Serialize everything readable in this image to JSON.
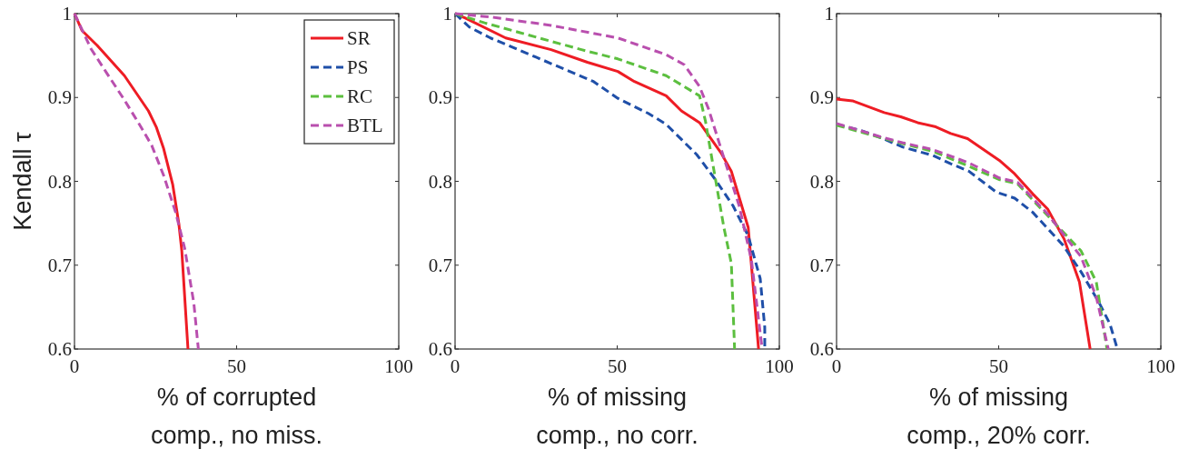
{
  "chart_data": [
    {
      "type": "line",
      "ylabel": "Kendall τ",
      "xlabel": "% of corrupted\ncomp., no miss.",
      "xlim": [
        0,
        100
      ],
      "ylim": [
        0.6,
        1
      ],
      "xticks": [
        0,
        50,
        100
      ],
      "yticks": [
        0.6,
        0.7,
        0.8,
        0.9,
        1
      ],
      "grid": false,
      "legend": "top right",
      "series": [
        {
          "name": "SR",
          "color": "#ee1c24",
          "line_style": "solid",
          "x": [
            0,
            2.3,
            7,
            15.4,
            22.8,
            25.2,
            27.5,
            30.3,
            32.2,
            33.1,
            35
          ],
          "values": [
            1,
            0.98,
            0.962,
            0.926,
            0.884,
            0.865,
            0.839,
            0.796,
            0.749,
            0.717,
            0.6
          ]
        },
        {
          "name": "PS",
          "color": "#1f4fa8",
          "line_style": "dashed"
        },
        {
          "name": "RC",
          "color": "#5cbf3f",
          "line_style": "dashed"
        },
        {
          "name": "BTL",
          "color": "#b94fae",
          "line_style": "dashed",
          "x": [
            0,
            5.1,
            9.8,
            15.4,
            20,
            23.8,
            27.5,
            31.2,
            34,
            36.8,
            38.2
          ],
          "values": [
            1,
            0.958,
            0.93,
            0.897,
            0.868,
            0.843,
            0.807,
            0.763,
            0.72,
            0.655,
            0.6
          ]
        }
      ]
    },
    {
      "type": "line",
      "xlabel": "% of missing\ncomp., no corr.",
      "xlim": [
        0,
        100
      ],
      "ylim": [
        0.6,
        1
      ],
      "xticks": [
        0,
        50,
        100
      ],
      "yticks": [
        0.6,
        0.7,
        0.8,
        0.9,
        1
      ],
      "grid": false,
      "legend": false,
      "series": [
        {
          "color": "#ee1c24",
          "line_style": "solid",
          "x": [
            0,
            3,
            15.6,
            29.6,
            40.8,
            50.2,
            55.3,
            65.1,
            69.8,
            75.4,
            82,
            85.2,
            90.4,
            93.6
          ],
          "values": [
            1,
            0.995,
            0.971,
            0.957,
            0.942,
            0.931,
            0.919,
            0.902,
            0.884,
            0.87,
            0.834,
            0.812,
            0.745,
            0.6
          ]
        },
        {
          "color": "#1f4fa8",
          "line_style": "dashed",
          "x": [
            0,
            4.4,
            10.9,
            25,
            42.7,
            50.2,
            59.6,
            65.1,
            74.5,
            80.1,
            85.7,
            90.4,
            94.1,
            95.5,
            95.5
          ],
          "values": [
            1,
            0.984,
            0.971,
            0.948,
            0.919,
            0.899,
            0.881,
            0.868,
            0.832,
            0.803,
            0.771,
            0.735,
            0.684,
            0.626,
            0.6
          ]
        },
        {
          "color": "#5cbf3f",
          "line_style": "dashed",
          "x": [
            0,
            9.1,
            20.3,
            39,
            50.2,
            65.1,
            75.4,
            77.2,
            80.1,
            82.9,
            85.2,
            86.2
          ],
          "values": [
            1,
            0.989,
            0.977,
            0.957,
            0.946,
            0.926,
            0.902,
            0.872,
            0.807,
            0.745,
            0.702,
            0.6
          ]
        },
        {
          "color": "#b94fae",
          "line_style": "dashed",
          "x": [
            0,
            10.9,
            29.6,
            50.2,
            65.1,
            70.7,
            75.4,
            78.2,
            82,
            87.6,
            91.4,
            94.7
          ],
          "values": [
            1,
            0.996,
            0.986,
            0.971,
            0.951,
            0.939,
            0.913,
            0.886,
            0.839,
            0.771,
            0.706,
            0.6
          ]
        }
      ]
    },
    {
      "type": "line",
      "xlabel": "% of missing\ncomp., 20% corr.",
      "xlim": [
        0,
        100
      ],
      "ylim": [
        0.6,
        1
      ],
      "xticks": [
        0,
        50,
        100
      ],
      "yticks": [
        0.6,
        0.7,
        0.8,
        0.9,
        1
      ],
      "grid": false,
      "legend": false,
      "series": [
        {
          "color": "#ee1c24",
          "line_style": "solid",
          "x": [
            0,
            4.9,
            14.7,
            19.8,
            25,
            30.6,
            35.2,
            40.4,
            50.2,
            54.9,
            60.5,
            65.1,
            70.2,
            74.9,
            78.2
          ],
          "values": [
            0.898,
            0.896,
            0.882,
            0.877,
            0.87,
            0.865,
            0.857,
            0.851,
            0.825,
            0.809,
            0.785,
            0.767,
            0.731,
            0.68,
            0.6
          ]
        },
        {
          "color": "#1f4fa8",
          "line_style": "dashed",
          "x": [
            0,
            7.2,
            13.7,
            20.3,
            29.6,
            35.2,
            40.8,
            49.3,
            54.9,
            60.5,
            69.8,
            75.4,
            81,
            84.3,
            86.6
          ],
          "values": [
            0.868,
            0.861,
            0.852,
            0.841,
            0.831,
            0.821,
            0.812,
            0.787,
            0.78,
            0.763,
            0.724,
            0.692,
            0.655,
            0.63,
            0.6
          ]
        },
        {
          "color": "#5cbf3f",
          "line_style": "dashed",
          "x": [
            0,
            13.7,
            20.3,
            29.6,
            40.8,
            50.2,
            55.8,
            65.1,
            75.4,
            80.1,
            83.4
          ],
          "values": [
            0.867,
            0.852,
            0.845,
            0.836,
            0.818,
            0.802,
            0.797,
            0.759,
            0.717,
            0.68,
            0.6
          ]
        },
        {
          "color": "#b94fae",
          "line_style": "dashed",
          "x": [
            0,
            13.7,
            20.3,
            29.6,
            40.8,
            50.2,
            55.8,
            65.1,
            75.4,
            80.1,
            83.8
          ],
          "values": [
            0.869,
            0.853,
            0.846,
            0.838,
            0.822,
            0.804,
            0.799,
            0.761,
            0.71,
            0.662,
            0.6
          ]
        }
      ]
    }
  ]
}
